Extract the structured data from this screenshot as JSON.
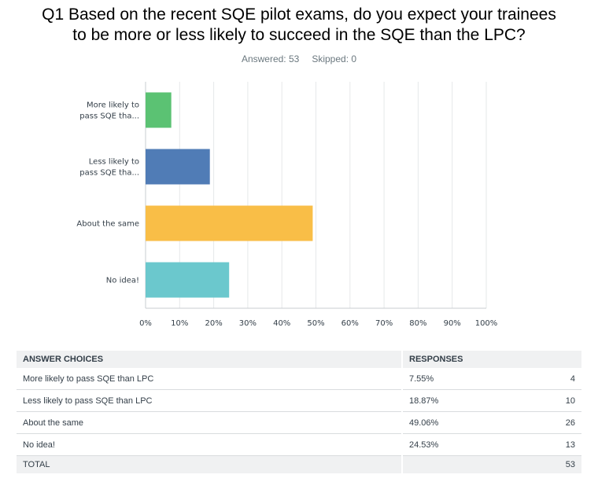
{
  "question": {
    "title_line1": "Q1 Based on the recent SQE pilot exams, do you expect your trainees",
    "title_line2": "to be more or less likely to succeed in the SQE than the LPC?",
    "answered": "Answered: 53",
    "skipped": "Skipped: 0"
  },
  "chart_data": {
    "type": "bar",
    "orientation": "horizontal",
    "categories": [
      "More likely to pass SQE than LPC",
      "Less likely to pass SQE than LPC",
      "About the same",
      "No idea!"
    ],
    "category_labels": [
      [
        "More likely to",
        "pass SQE tha..."
      ],
      [
        "Less likely to",
        "pass SQE tha..."
      ],
      [
        "About the same"
      ],
      [
        "No idea!"
      ]
    ],
    "values": [
      7.55,
      18.87,
      49.06,
      24.53
    ],
    "colors": [
      "#5bc273",
      "#507cb6",
      "#f9be47",
      "#6bc8cd"
    ],
    "xlim": [
      0,
      100
    ],
    "x_ticks": [
      "0%",
      "10%",
      "20%",
      "30%",
      "40%",
      "50%",
      "60%",
      "70%",
      "80%",
      "90%",
      "100%"
    ],
    "grid": true
  },
  "table": {
    "headers": [
      "ANSWER CHOICES",
      "RESPONSES"
    ],
    "rows": [
      {
        "choice": "More likely to pass SQE than LPC",
        "percent": "7.55%",
        "count": "4"
      },
      {
        "choice": "Less likely to pass SQE than LPC",
        "percent": "18.87%",
        "count": "10"
      },
      {
        "choice": "About the same",
        "percent": "49.06%",
        "count": "26"
      },
      {
        "choice": "No idea!",
        "percent": "24.53%",
        "count": "13"
      }
    ],
    "total_label": "TOTAL",
    "total_count": "53"
  }
}
